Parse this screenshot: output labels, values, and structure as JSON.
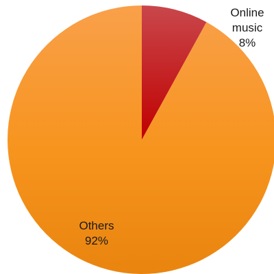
{
  "chart_data": {
    "type": "pie",
    "title": "",
    "slices": [
      {
        "label_lines": [
          "Online",
          "music"
        ],
        "value": 8,
        "percent_label": "8%",
        "color": "#c00000"
      },
      {
        "label_lines": [
          "Others"
        ],
        "value": 92,
        "percent_label": "92%",
        "color": "#f7941d"
      }
    ],
    "start_angle_deg": 0,
    "direction": "clockwise",
    "legend": "none"
  }
}
